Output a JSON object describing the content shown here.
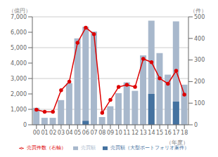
{
  "chart_data": {
    "type": "bar",
    "categories": [
      "00",
      "01",
      "02",
      "03",
      "04",
      "05",
      "06",
      "07",
      "08",
      "09",
      "10",
      "11",
      "12",
      "13",
      "14",
      "15",
      "16",
      "17",
      "18"
    ],
    "series": [
      {
        "name": "売買額",
        "color": "#a8b8cc",
        "values": [
          1100,
          450,
          450,
          1600,
          2700,
          5600,
          6350,
          6050,
          500,
          1200,
          2050,
          2750,
          2200,
          4500,
          6750,
          4650,
          3250,
          6700,
          2600
        ]
      },
      {
        "name": "売買額（大型ポートフォリオ案件）",
        "color": "#4472a0",
        "values": [
          0,
          0,
          0,
          0,
          0,
          0,
          250,
          0,
          0,
          0,
          0,
          0,
          0,
          0,
          2000,
          0,
          0,
          1500,
          0
        ]
      },
      {
        "name": "売買件数（右軸）",
        "type": "line",
        "axis": "y2",
        "color": "#dd0000",
        "marker": "circle",
        "values": [
          70,
          60,
          60,
          160,
          200,
          380,
          450,
          420,
          55,
          115,
          175,
          185,
          175,
          305,
          290,
          215,
          190,
          250,
          140
        ]
      }
    ],
    "ylim": [
      0,
      7000
    ],
    "yticks": [
      0,
      {
        "value": 1000,
        "label": "1,000"
      },
      {
        "value": 2000,
        "label": "2,000"
      },
      {
        "value": 3000,
        "label": "3,000"
      },
      {
        "value": 4000,
        "label": "4,000"
      },
      {
        "value": 5000,
        "label": "5,000"
      },
      {
        "value": 6000,
        "label": "6,000"
      },
      {
        "value": 7000,
        "label": "7,000"
      }
    ],
    "y2lim": [
      0,
      500
    ],
    "y2ticks": [
      0,
      100,
      200,
      300,
      400,
      500
    ],
    "ylabel": "（億円）",
    "y2label": "（件）",
    "xlabel": "（年度）",
    "grid": true,
    "legend": "bottom"
  }
}
